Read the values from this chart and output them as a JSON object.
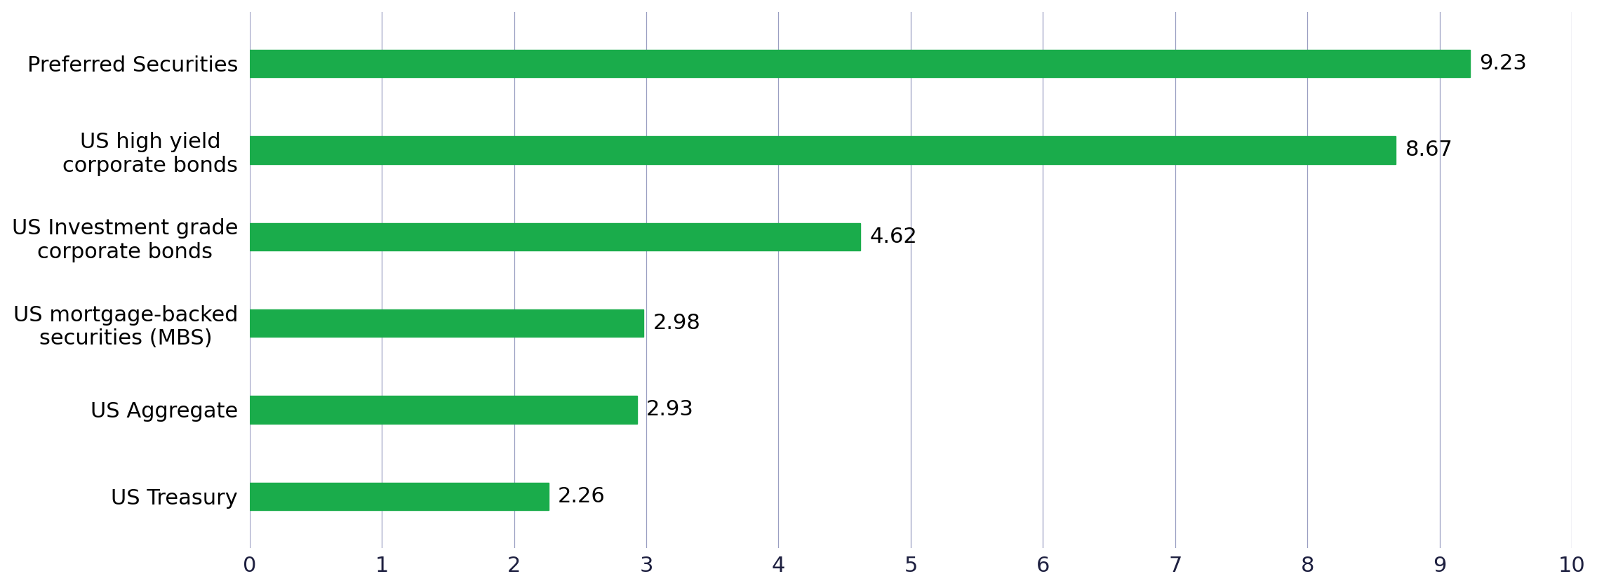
{
  "categories": [
    "US Treasury",
    "US Aggregate",
    "US mortgage-backed\nsecurities (MBS)",
    "US Investment grade\ncorporate bonds",
    "US high yield\ncorporate bonds",
    "Preferred Securities"
  ],
  "values": [
    2.26,
    2.93,
    2.98,
    4.62,
    8.67,
    9.23
  ],
  "bar_color": "#1aac4b",
  "bar_edge_color": "#1aac4b",
  "value_labels": [
    "2.26",
    "2.93",
    "2.98",
    "4.62",
    "8.67",
    "9.23"
  ],
  "xlim": [
    0,
    10
  ],
  "xticks": [
    0,
    1,
    2,
    3,
    4,
    5,
    6,
    7,
    8,
    9,
    10
  ],
  "grid_color": "#9a9fc2",
  "background_color": "#ffffff",
  "tick_label_fontsize": 22,
  "value_label_fontsize": 22,
  "category_fontsize": 22,
  "bar_height": 0.32
}
